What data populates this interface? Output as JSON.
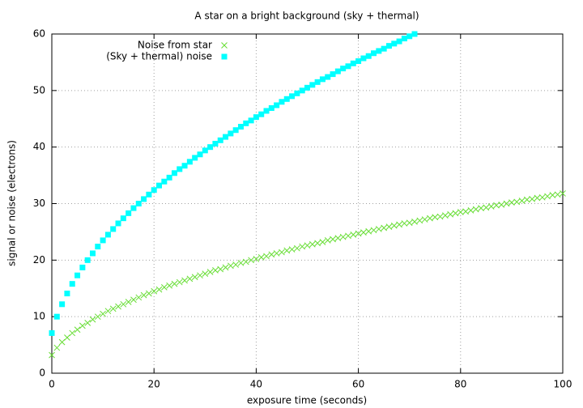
{
  "chart_data": {
    "type": "scatter",
    "title": "A star on a bright background (sky + thermal)",
    "xlabel": "exposure time (seconds)",
    "ylabel": "signal or noise (electrons)",
    "xlim": [
      0,
      100
    ],
    "xticks": [
      0,
      20,
      40,
      60,
      80,
      100
    ],
    "ylim": [
      0,
      60
    ],
    "yticks": [
      0,
      10,
      20,
      30,
      40,
      50,
      60
    ],
    "grid": true,
    "legend": "top left",
    "series": [
      {
        "name": "Noise from star",
        "color": "#66dd33",
        "marker": "cross",
        "x": [
          0,
          1,
          2,
          3,
          4,
          5,
          6,
          7,
          8,
          9,
          10,
          11,
          12,
          13,
          14,
          15,
          16,
          17,
          18,
          19,
          20,
          21,
          22,
          23,
          24,
          25,
          26,
          27,
          28,
          29,
          30,
          31,
          32,
          33,
          34,
          35,
          36,
          37,
          38,
          39,
          40,
          41,
          42,
          43,
          44,
          45,
          46,
          47,
          48,
          49,
          50,
          51,
          52,
          53,
          54,
          55,
          56,
          57,
          58,
          59,
          60,
          61,
          62,
          63,
          64,
          65,
          66,
          67,
          68,
          69,
          70,
          71,
          72,
          73,
          74,
          75,
          76,
          77,
          78,
          79,
          80,
          81,
          82,
          83,
          84,
          85,
          86,
          87,
          88,
          89,
          90,
          91,
          92,
          93,
          94,
          95,
          96,
          97,
          98,
          99,
          100
        ],
        "values": [
          3.2,
          4.5,
          5.5,
          6.3,
          7.1,
          7.7,
          8.4,
          8.9,
          9.5,
          10.0,
          10.5,
          11.0,
          11.4,
          11.8,
          12.2,
          12.6,
          13.0,
          13.4,
          13.8,
          14.1,
          14.5,
          14.8,
          15.2,
          15.5,
          15.8,
          16.1,
          16.4,
          16.7,
          17.0,
          17.3,
          17.6,
          17.9,
          18.2,
          18.4,
          18.7,
          19.0,
          19.2,
          19.5,
          19.7,
          20.0,
          20.2,
          20.5,
          20.7,
          21.0,
          21.2,
          21.4,
          21.7,
          21.9,
          22.1,
          22.4,
          22.6,
          22.8,
          23.0,
          23.2,
          23.5,
          23.7,
          23.9,
          24.1,
          24.3,
          24.5,
          24.7,
          24.9,
          25.1,
          25.3,
          25.5,
          25.7,
          25.9,
          26.1,
          26.3,
          26.5,
          26.6,
          26.8,
          27.0,
          27.2,
          27.4,
          27.6,
          27.7,
          27.9,
          28.1,
          28.3,
          28.5,
          28.6,
          28.8,
          29.0,
          29.2,
          29.3,
          29.5,
          29.7,
          29.8,
          30.0,
          30.2,
          30.3,
          30.5,
          30.7,
          30.8,
          31.0,
          31.1,
          31.3,
          31.5,
          31.6,
          31.8
        ]
      },
      {
        "name": "(Sky + thermal) noise",
        "color": "#00ffff",
        "marker": "square",
        "x": [
          0,
          1,
          2,
          3,
          4,
          5,
          6,
          7,
          8,
          9,
          10,
          11,
          12,
          13,
          14,
          15,
          16,
          17,
          18,
          19,
          20,
          21,
          22,
          23,
          24,
          25,
          26,
          27,
          28,
          29,
          30,
          31,
          32,
          33,
          34,
          35,
          36,
          37,
          38,
          39,
          40,
          41,
          42,
          43,
          44,
          45,
          46,
          47,
          48,
          49,
          50,
          51,
          52,
          53,
          54,
          55,
          56,
          57,
          58,
          59,
          60,
          61,
          62,
          63,
          64,
          65,
          66,
          67,
          68,
          69,
          70,
          71
        ],
        "values": [
          7.1,
          10.0,
          12.2,
          14.1,
          15.8,
          17.3,
          18.7,
          20.0,
          21.2,
          22.4,
          23.5,
          24.5,
          25.5,
          26.5,
          27.4,
          28.3,
          29.2,
          30.0,
          30.8,
          31.6,
          32.4,
          33.2,
          33.9,
          34.6,
          35.4,
          36.1,
          36.7,
          37.4,
          38.1,
          38.7,
          39.4,
          40.0,
          40.6,
          41.2,
          41.8,
          42.4,
          43.0,
          43.6,
          44.2,
          44.7,
          45.3,
          45.8,
          46.4,
          46.9,
          47.4,
          48.0,
          48.5,
          49.0,
          49.5,
          50.0,
          50.5,
          51.0,
          51.5,
          52.0,
          52.4,
          52.9,
          53.4,
          53.9,
          54.3,
          54.8,
          55.2,
          55.7,
          56.1,
          56.6,
          57.0,
          57.4,
          57.9,
          58.3,
          58.7,
          59.2,
          59.6,
          60.0
        ]
      }
    ]
  }
}
